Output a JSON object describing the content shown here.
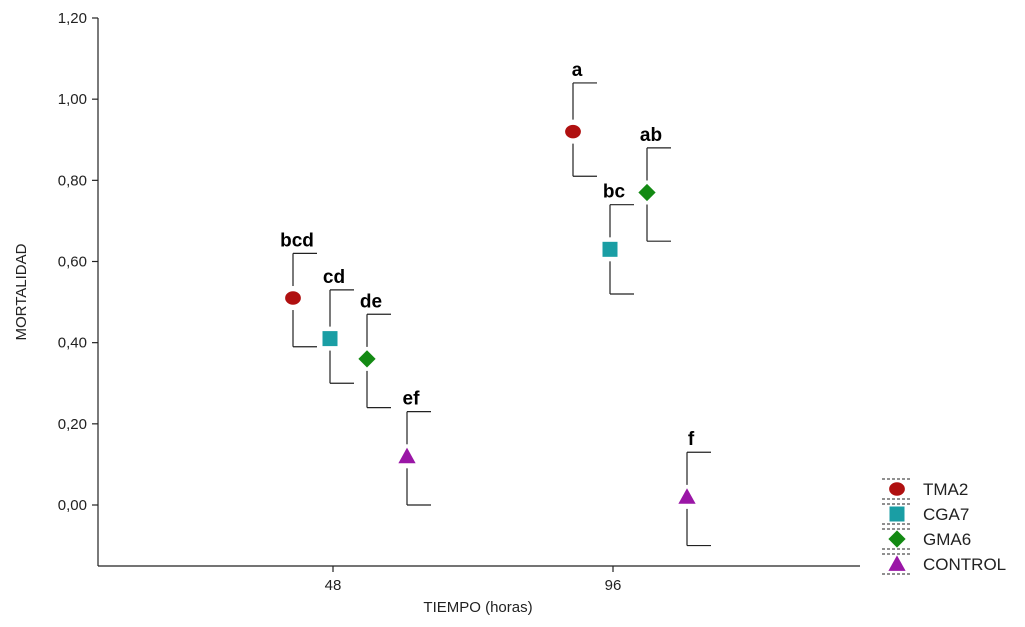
{
  "chart_data": {
    "type": "scatter",
    "xlabel": "TIEMPO (horas)",
    "ylabel": "MORTALIDAD",
    "ylim": [
      -0.15,
      1.2
    ],
    "yticks": [
      "1,20",
      "1,00",
      "0,80",
      "0,60",
      "0,40",
      "0,20",
      "0,00"
    ],
    "ytick_values": [
      1.2,
      1.0,
      0.8,
      0.6,
      0.4,
      0.2,
      0.0
    ],
    "categories": [
      "48",
      "96"
    ],
    "grid": false,
    "legend_position": "bottom-right",
    "series": [
      {
        "name": "TMA2",
        "color": "#b01010",
        "marker": "circle",
        "values": [
          0.51,
          0.92
        ],
        "upper": [
          0.62,
          1.04
        ],
        "lower": [
          0.39,
          0.81
        ],
        "labels": [
          "bcd",
          "a"
        ]
      },
      {
        "name": "CGA7",
        "color": "#1a9ea4",
        "marker": "square",
        "values": [
          0.41,
          0.63
        ],
        "upper": [
          0.53,
          0.74
        ],
        "lower": [
          0.3,
          0.52
        ],
        "labels": [
          "cd",
          "bc"
        ]
      },
      {
        "name": "GMA6",
        "color": "#138a13",
        "marker": "diamond",
        "values": [
          0.36,
          0.77
        ],
        "upper": [
          0.47,
          0.88
        ],
        "lower": [
          0.24,
          0.65
        ],
        "labels": [
          "de",
          "ab"
        ]
      },
      {
        "name": "CONTROL",
        "color": "#9a16a6",
        "marker": "triangle",
        "values": [
          0.12,
          0.02
        ],
        "upper": [
          0.23,
          0.13
        ],
        "lower": [
          0.0,
          -0.1
        ],
        "labels": [
          "ef",
          "f"
        ]
      }
    ]
  }
}
